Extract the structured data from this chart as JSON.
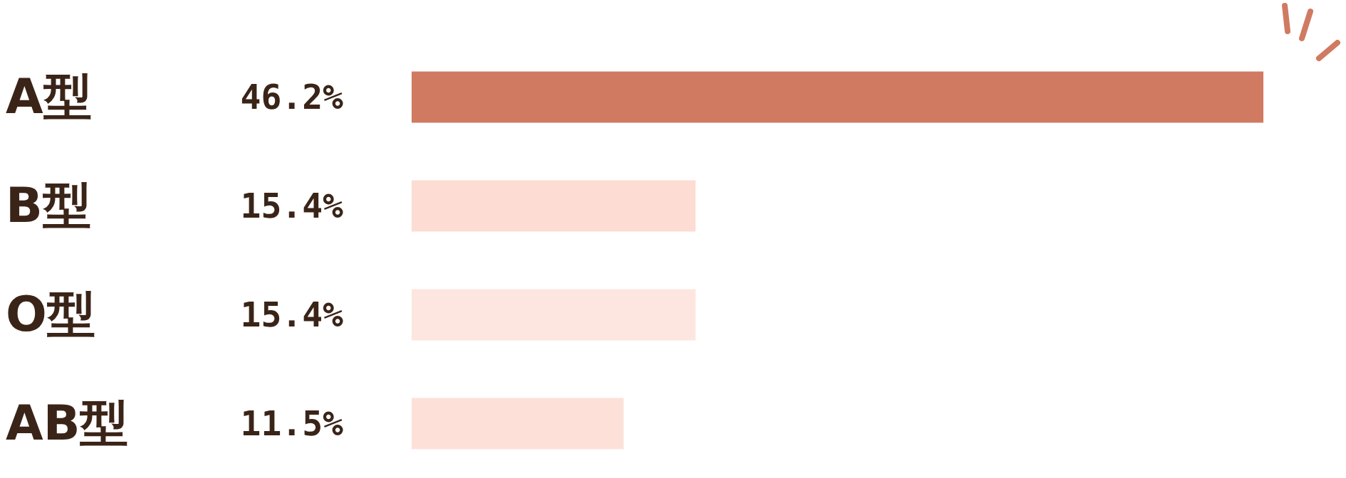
{
  "chart_data": {
    "type": "bar",
    "orientation": "horizontal",
    "categories": [
      "A型",
      "B型",
      "O型",
      "AB型"
    ],
    "values": [
      46.2,
      15.4,
      15.4,
      11.5
    ],
    "value_labels": [
      "46.2%",
      "15.4%",
      "15.4%",
      "11.5%"
    ],
    "colors": [
      "#d07a62",
      "#fddcd3",
      "#fde6df",
      "#fde1d9"
    ]
  }
}
